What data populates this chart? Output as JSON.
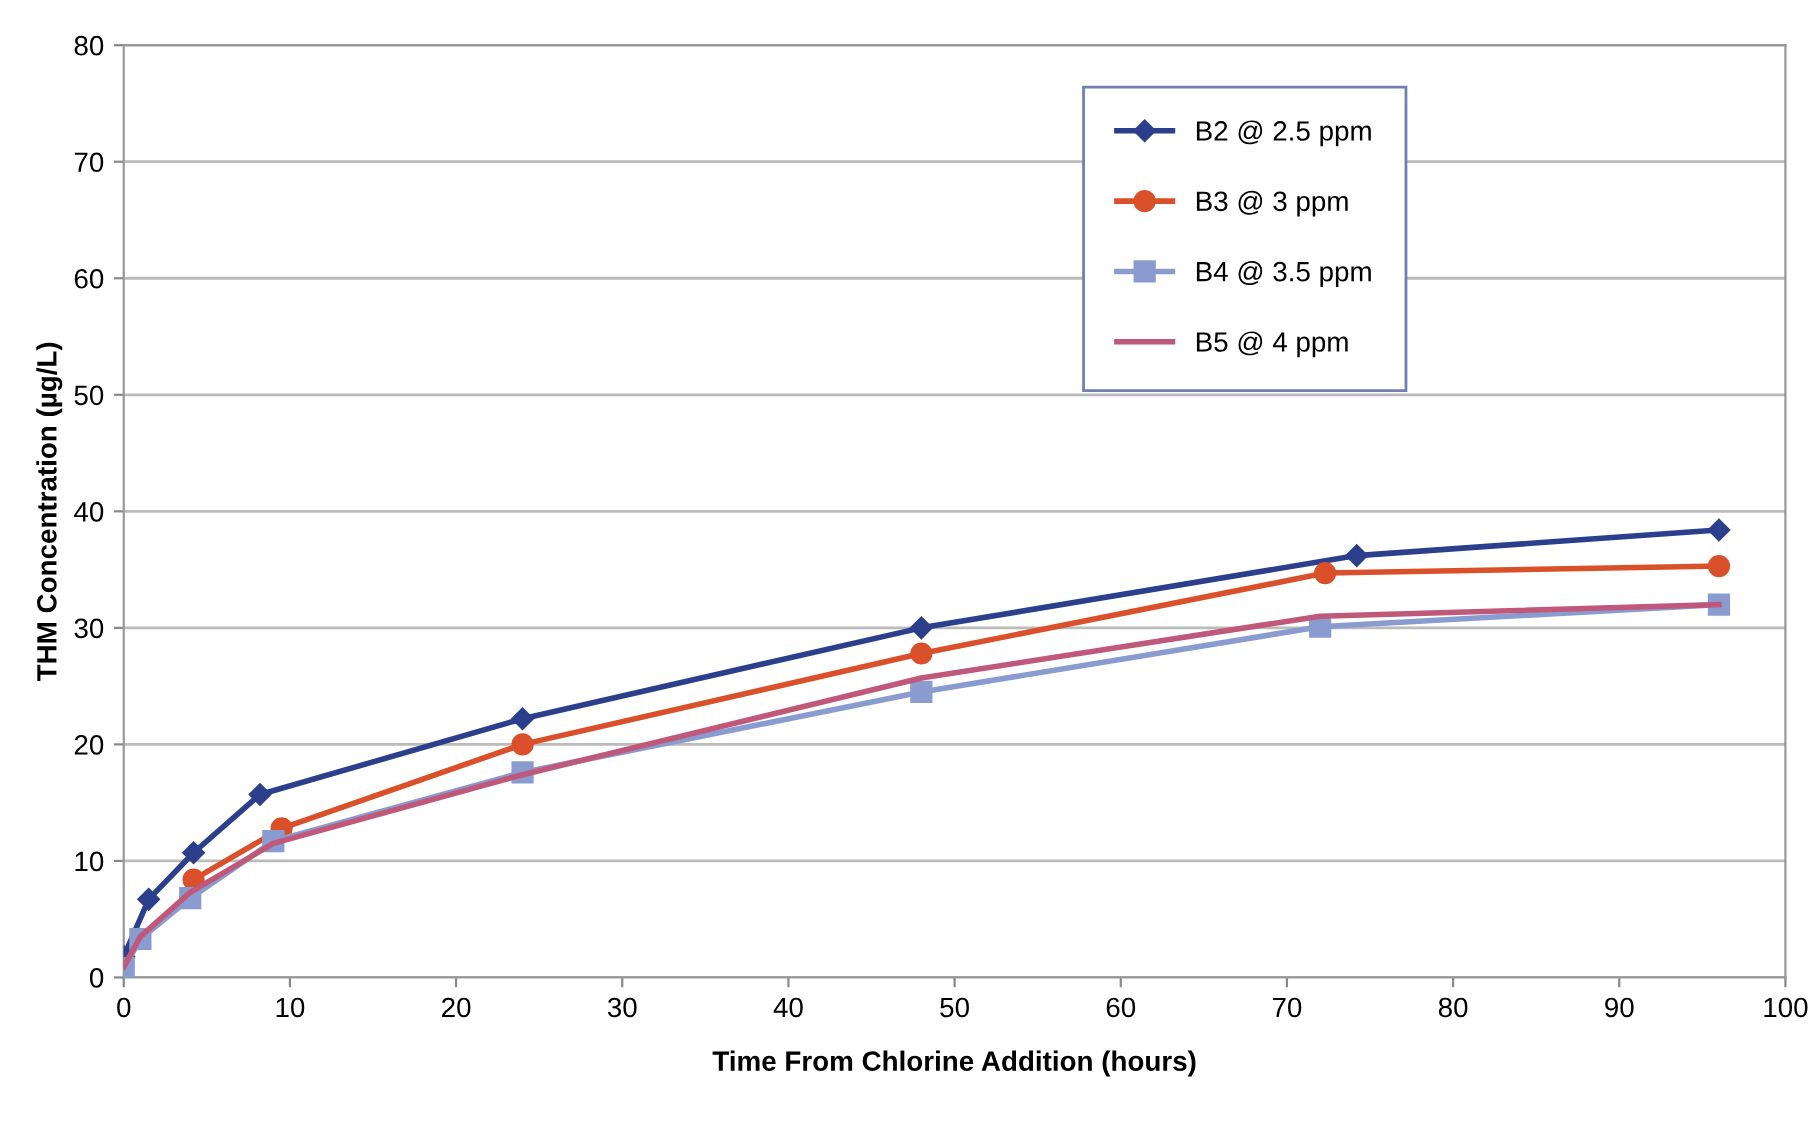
{
  "chart_data": {
    "type": "line",
    "xlabel": "Time From Chlorine Addition (hours)",
    "ylabel": "THM Concentration (µg/L)",
    "xlim": [
      0,
      100
    ],
    "xticks": [
      0,
      10,
      20,
      30,
      40,
      50,
      60,
      70,
      80,
      90,
      100
    ],
    "ylim": [
      0,
      80
    ],
    "yticks": [
      0,
      10,
      20,
      30,
      40,
      50,
      60,
      70,
      80
    ],
    "grid": "y",
    "legend": "top right",
    "series": [
      {
        "name": "B2 @ 2.5 ppm",
        "color": "#2b3f8c",
        "marker": "diamond",
        "x": [
          0,
          1.5,
          4.2,
          8.2,
          24,
          48,
          74.2,
          96
        ],
        "values": [
          1.8,
          6.7,
          10.7,
          15.7,
          22.2,
          30,
          36.2,
          38.4
        ]
      },
      {
        "name": "B3 @ 3 ppm",
        "color": "#d9502a",
        "marker": "circle",
        "x": [
          4.2,
          9.5,
          24,
          48,
          72.3,
          96
        ],
        "values": [
          8.4,
          12.8,
          20,
          27.8,
          34.7,
          35.3
        ]
      },
      {
        "name": "B4 @ 3.5 ppm",
        "color": "#8a9bd0",
        "marker": "square",
        "x": [
          0,
          1,
          4,
          9,
          24,
          48,
          72,
          96
        ],
        "values": [
          0.8,
          3.3,
          6.8,
          11.7,
          17.6,
          24.5,
          30.1,
          32
        ]
      },
      {
        "name": "B5 @ 4 ppm",
        "color": "#c0587a",
        "marker": "none",
        "x": [
          0,
          1,
          4,
          9,
          24,
          48,
          72,
          96
        ],
        "values": [
          0.9,
          3.5,
          7.3,
          11.5,
          17.4,
          25.7,
          31,
          32
        ]
      }
    ]
  }
}
